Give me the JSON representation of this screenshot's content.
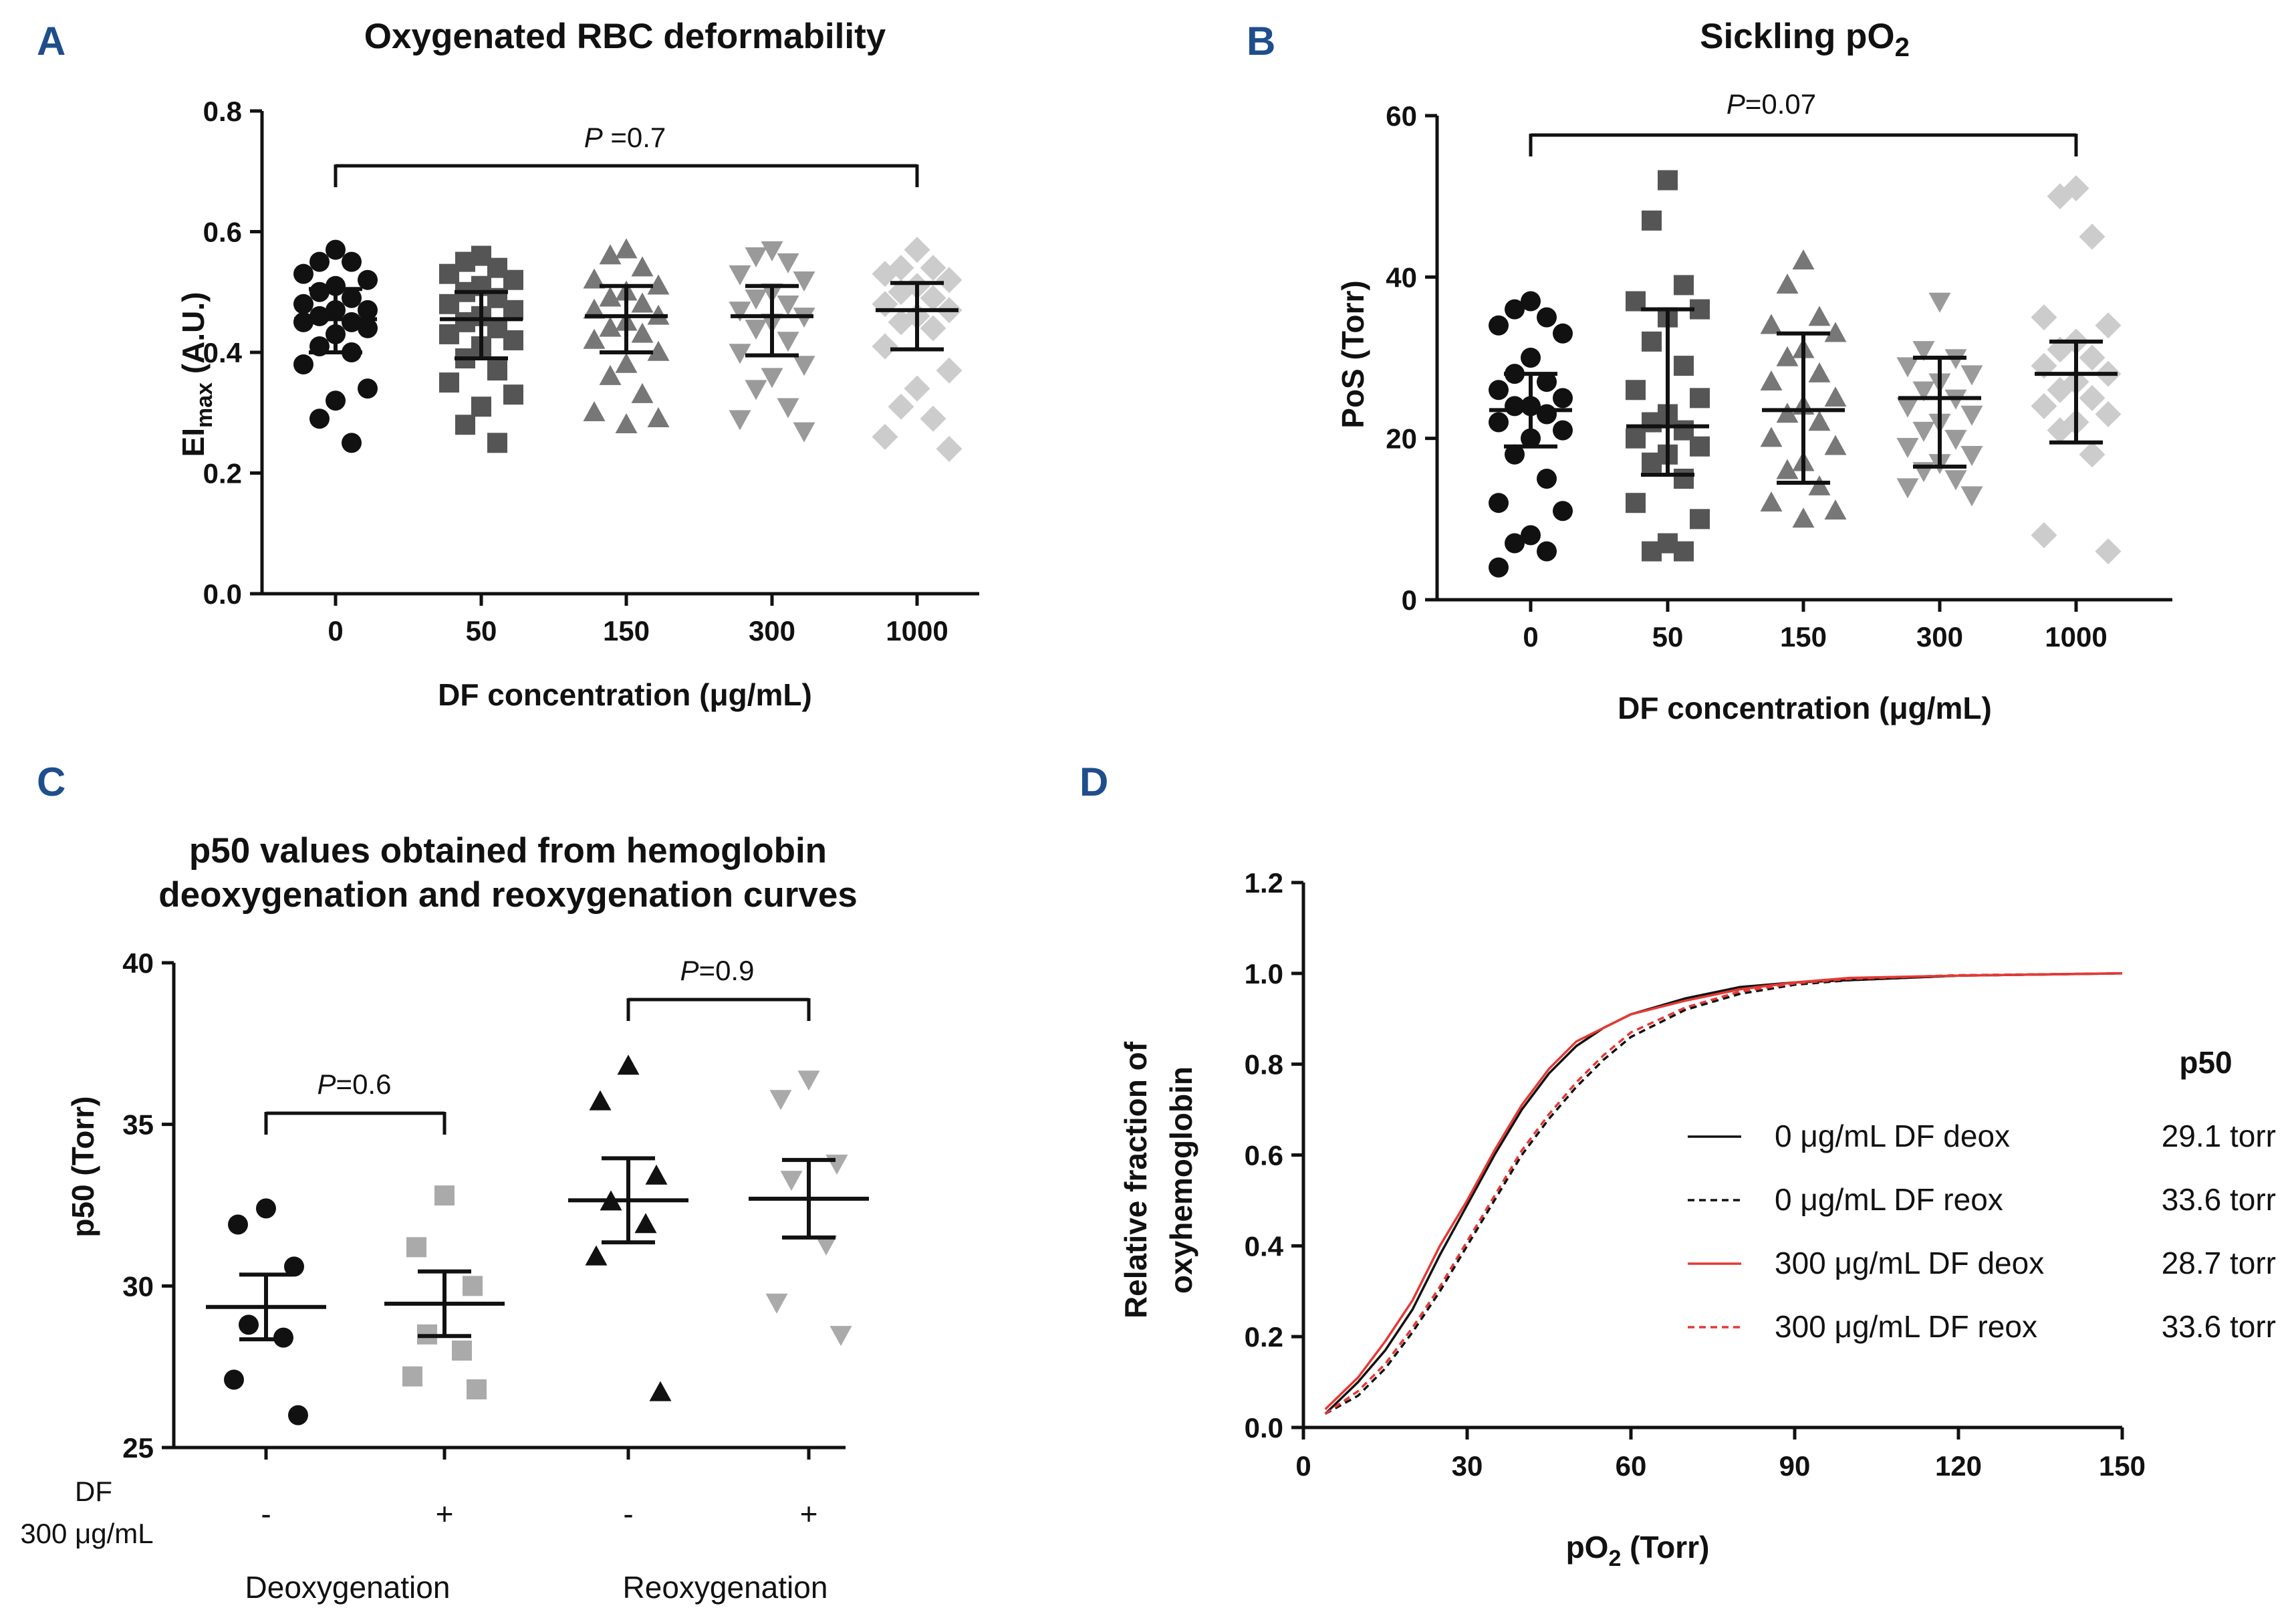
{
  "figure": {
    "panel_labels": [
      "A",
      "B",
      "C",
      "D"
    ]
  },
  "chart_data": [
    {
      "panel": "A",
      "type": "scatter",
      "title": "Oxygenated RBC deformability",
      "xlabel": "DF concentration (μg/mL)",
      "ylabel": {
        "main": "EI",
        "sub": "max",
        "suffix": " (A.U.)"
      },
      "categories": [
        "0",
        "50",
        "150",
        "300",
        "1000"
      ],
      "ylim": [
        0,
        0.8
      ],
      "yticks": [
        "0.0",
        "0.2",
        "0.4",
        "0.6",
        "0.8"
      ],
      "ytick_values": [
        0,
        0.2,
        0.4,
        0.6,
        0.8
      ],
      "annotation": {
        "label": "P",
        "text": " =0.7",
        "from": "0",
        "to": "1000"
      },
      "series": [
        {
          "name": "0",
          "marker": "circle",
          "color": "#111111",
          "mean": 0.455,
          "err_low": 0.4,
          "err_high": 0.505,
          "values": [
            0.57,
            0.55,
            0.55,
            0.53,
            0.52,
            0.51,
            0.5,
            0.49,
            0.48,
            0.47,
            0.47,
            0.46,
            0.45,
            0.45,
            0.44,
            0.43,
            0.41,
            0.4,
            0.38,
            0.34,
            0.32,
            0.29,
            0.25
          ]
        },
        {
          "name": "50",
          "marker": "square",
          "color": "#555555",
          "mean": 0.455,
          "err_low": 0.39,
          "err_high": 0.5,
          "values": [
            0.56,
            0.55,
            0.54,
            0.53,
            0.52,
            0.51,
            0.5,
            0.49,
            0.48,
            0.47,
            0.46,
            0.45,
            0.44,
            0.43,
            0.42,
            0.41,
            0.39,
            0.37,
            0.35,
            0.33,
            0.31,
            0.28,
            0.25
          ]
        },
        {
          "name": "150",
          "marker": "triangle-up",
          "color": "#777777",
          "mean": 0.46,
          "err_low": 0.4,
          "err_high": 0.51,
          "values": [
            0.57,
            0.56,
            0.54,
            0.52,
            0.51,
            0.5,
            0.49,
            0.48,
            0.47,
            0.46,
            0.45,
            0.44,
            0.43,
            0.42,
            0.4,
            0.38,
            0.36,
            0.33,
            0.3,
            0.29,
            0.28
          ]
        },
        {
          "name": "300",
          "marker": "triangle-down",
          "color": "#9a9a9a",
          "mean": 0.46,
          "err_low": 0.395,
          "err_high": 0.51,
          "values": [
            0.57,
            0.56,
            0.55,
            0.53,
            0.52,
            0.5,
            0.49,
            0.48,
            0.47,
            0.46,
            0.45,
            0.44,
            0.42,
            0.4,
            0.38,
            0.36,
            0.34,
            0.31,
            0.29,
            0.27
          ]
        },
        {
          "name": "1000",
          "marker": "diamond",
          "color": "#cccccc",
          "mean": 0.47,
          "err_low": 0.405,
          "err_high": 0.515,
          "values": [
            0.57,
            0.54,
            0.54,
            0.53,
            0.52,
            0.51,
            0.5,
            0.49,
            0.48,
            0.47,
            0.46,
            0.45,
            0.44,
            0.41,
            0.37,
            0.34,
            0.31,
            0.29,
            0.26,
            0.24
          ]
        }
      ]
    },
    {
      "panel": "B",
      "type": "scatter",
      "title": {
        "main": "Sickling pO",
        "sub": "2"
      },
      "xlabel": "DF concentration (μg/mL)",
      "ylabel": "PoS (Torr)",
      "categories": [
        "0",
        "50",
        "150",
        "300",
        "1000"
      ],
      "ylim": [
        0,
        60
      ],
      "yticks": [
        "0",
        "20",
        "40",
        "60"
      ],
      "ytick_values": [
        0,
        20,
        40,
        60
      ],
      "annotation": {
        "label": "P",
        "text": "=0.07",
        "from": "0",
        "to": "1000"
      },
      "series": [
        {
          "name": "0",
          "marker": "circle",
          "color": "#111111",
          "mean": 23.5,
          "err_low": 19.0,
          "err_high": 28.0,
          "values": [
            37,
            36,
            35,
            34,
            33,
            30,
            28,
            27,
            26,
            25,
            24,
            24,
            23,
            22,
            21,
            20,
            18,
            15,
            12,
            11,
            8,
            7,
            6,
            4
          ]
        },
        {
          "name": "50",
          "marker": "square",
          "color": "#555555",
          "mean": 21.5,
          "err_low": 15.5,
          "err_high": 36.0,
          "values": [
            52,
            47,
            39,
            37,
            36,
            35,
            32,
            29,
            26,
            25,
            23,
            22,
            21,
            20,
            19,
            18,
            17,
            15,
            12,
            10,
            7,
            6,
            6
          ]
        },
        {
          "name": "150",
          "marker": "triangle-up",
          "color": "#777777",
          "mean": 23.5,
          "err_low": 14.5,
          "err_high": 33.0,
          "values": [
            42,
            39,
            35,
            34,
            33,
            31,
            30,
            28,
            27,
            25,
            24,
            23,
            22,
            20,
            19,
            17,
            16,
            14,
            12,
            11,
            10
          ]
        },
        {
          "name": "300",
          "marker": "triangle-down",
          "color": "#9a9a9a",
          "mean": 25.0,
          "err_low": 16.5,
          "err_high": 30.0,
          "values": [
            37,
            31,
            30,
            29,
            28,
            27,
            26,
            25,
            24,
            23,
            22,
            21,
            20,
            19,
            18,
            17,
            16,
            15,
            14,
            13
          ]
        },
        {
          "name": "1000",
          "marker": "diamond",
          "color": "#cccccc",
          "mean": 28.0,
          "err_low": 19.5,
          "err_high": 32.0,
          "values": [
            51,
            50,
            45,
            35,
            34,
            32,
            31,
            30,
            29,
            28,
            27,
            26,
            25,
            24,
            23,
            22,
            21,
            18,
            8,
            6
          ]
        }
      ]
    },
    {
      "panel": "C",
      "type": "scatter",
      "title": [
        "p50 values obtained from hemoglobin",
        "deoxygenation and reoxygenation curves"
      ],
      "ylabel": "p50 (Torr)",
      "ylim": [
        25,
        40
      ],
      "yticks": [
        "25",
        "30",
        "35",
        "40"
      ],
      "ytick_values": [
        25,
        30,
        35,
        40
      ],
      "row_label": [
        "DF",
        "300 μg/mL"
      ],
      "groups": [
        "Deoxygenation",
        "Reoxygenation"
      ],
      "annotations": [
        {
          "label": "P",
          "text": "=0.6",
          "group": "Deoxygenation"
        },
        {
          "label": "P",
          "text": "=0.9",
          "group": "Reoxygenation"
        }
      ],
      "series": [
        {
          "name": "Deoxygenation -",
          "df": "-",
          "marker": "circle",
          "color": "#111111",
          "mean": 29.35,
          "err_low": 28.35,
          "err_high": 30.35,
          "values": [
            32.4,
            31.9,
            30.6,
            28.8,
            28.4,
            27.1,
            26.0
          ]
        },
        {
          "name": "Deoxygenation +",
          "df": "+",
          "marker": "square",
          "color": "#aaaaaa",
          "mean": 29.45,
          "err_low": 28.45,
          "err_high": 30.45,
          "values": [
            32.8,
            31.2,
            30.0,
            28.5,
            28.0,
            27.2,
            26.8
          ]
        },
        {
          "name": "Reoxygenation -",
          "df": "-",
          "marker": "triangle-up",
          "color": "#111111",
          "mean": 32.65,
          "err_low": 31.35,
          "err_high": 33.95,
          "values": [
            36.8,
            35.7,
            33.4,
            32.6,
            31.9,
            30.9,
            26.7
          ]
        },
        {
          "name": "Reoxygenation +",
          "df": "+",
          "marker": "triangle-down",
          "color": "#aaaaaa",
          "mean": 32.7,
          "err_low": 31.5,
          "err_high": 33.9,
          "values": [
            36.4,
            35.8,
            33.8,
            33.3,
            31.3,
            29.5,
            28.5
          ]
        }
      ]
    },
    {
      "panel": "D",
      "type": "line",
      "xlabel": {
        "main": "pO",
        "sub": "2",
        "suffix": " (Torr)"
      },
      "ylabel": [
        "Relative fraction of",
        "oxyhemoglobin"
      ],
      "xlim": [
        0,
        150
      ],
      "ylim": [
        0,
        1.2
      ],
      "xticks": [
        "0",
        "30",
        "60",
        "90",
        "120",
        "150"
      ],
      "xtick_values": [
        0,
        30,
        60,
        90,
        120,
        150
      ],
      "yticks": [
        "0.0",
        "0.2",
        "0.4",
        "0.6",
        "0.8",
        "1.0",
        "1.2"
      ],
      "ytick_values": [
        0,
        0.2,
        0.4,
        0.6,
        0.8,
        1.0,
        1.2
      ],
      "legend_title": "p50",
      "legend_position": "right",
      "series": [
        {
          "name": "0 μg/mL DF deox",
          "p50": "29.1 torr",
          "color": "#111111",
          "dash": false,
          "x": [
            4,
            10,
            15,
            20,
            25,
            30,
            35,
            40,
            45,
            50,
            55,
            60,
            70,
            80,
            90,
            100,
            120,
            150
          ],
          "y": [
            0.03,
            0.1,
            0.17,
            0.26,
            0.38,
            0.49,
            0.6,
            0.7,
            0.78,
            0.84,
            0.88,
            0.91,
            0.945,
            0.97,
            0.98,
            0.985,
            0.995,
            1.0
          ]
        },
        {
          "name": "0 μg/mL DF reox",
          "p50": "33.6 torr",
          "color": "#111111",
          "dash": true,
          "x": [
            4,
            10,
            15,
            20,
            25,
            30,
            35,
            40,
            45,
            50,
            55,
            60,
            70,
            80,
            90,
            100,
            120,
            150
          ],
          "y": [
            0.03,
            0.07,
            0.13,
            0.21,
            0.3,
            0.4,
            0.5,
            0.6,
            0.68,
            0.75,
            0.81,
            0.86,
            0.92,
            0.955,
            0.975,
            0.985,
            0.995,
            1.0
          ]
        },
        {
          "name": "300 μg/mL DF deox",
          "p50": "28.7 torr",
          "color": "#e53935",
          "dash": false,
          "x": [
            4,
            10,
            15,
            20,
            25,
            30,
            35,
            40,
            45,
            50,
            55,
            60,
            70,
            80,
            90,
            100,
            120,
            150
          ],
          "y": [
            0.04,
            0.11,
            0.19,
            0.28,
            0.4,
            0.5,
            0.61,
            0.71,
            0.79,
            0.85,
            0.88,
            0.91,
            0.94,
            0.965,
            0.98,
            0.99,
            0.995,
            1.0
          ]
        },
        {
          "name": "300 μg/mL DF reox",
          "p50": "33.6 torr",
          "color": "#e53935",
          "dash": true,
          "x": [
            4,
            10,
            15,
            20,
            25,
            30,
            35,
            40,
            45,
            50,
            55,
            60,
            70,
            80,
            90,
            100,
            120,
            150
          ],
          "y": [
            0.03,
            0.08,
            0.14,
            0.22,
            0.31,
            0.41,
            0.51,
            0.61,
            0.69,
            0.76,
            0.82,
            0.87,
            0.925,
            0.96,
            0.978,
            0.988,
            0.996,
            1.0
          ]
        }
      ]
    }
  ]
}
